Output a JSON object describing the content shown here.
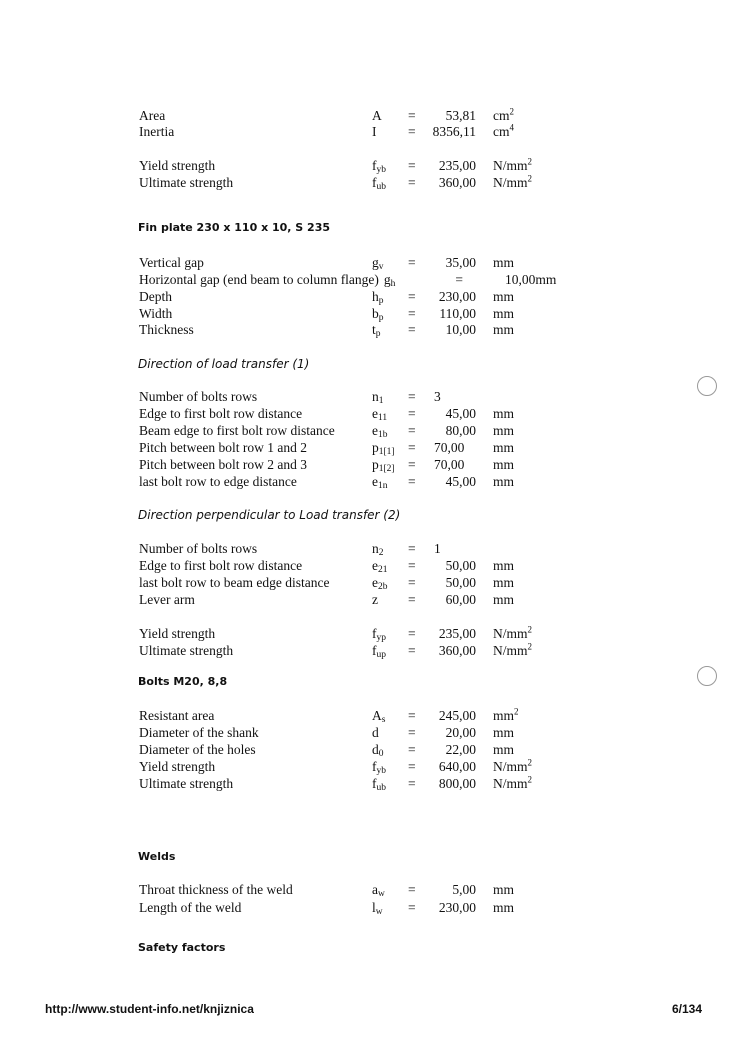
{
  "blocks": [
    {
      "type": "rows",
      "rows": [
        {
          "label": "Area",
          "sym": "A",
          "sub": "",
          "val": "53,81",
          "unit": "cm",
          "unit_sup": "2"
        },
        {
          "label": "Inertia",
          "sym": "I",
          "sub": "",
          "val": "8356,11",
          "unit": "cm",
          "unit_sup": "4"
        }
      ]
    },
    {
      "type": "rows",
      "rows": [
        {
          "label": "Yield strength",
          "sym": "f",
          "sub": "yb",
          "val": "235,00",
          "unit": "N/mm",
          "unit_sup": "2"
        },
        {
          "label": "Ultimate strength",
          "sym": "f",
          "sub": "ub",
          "val": "360,00",
          "unit": "N/mm",
          "unit_sup": "2"
        }
      ]
    },
    {
      "type": "heading",
      "text": "Fin plate 230 x 110 x 10, S 235"
    },
    {
      "type": "rows",
      "rows": [
        {
          "label": "Vertical gap",
          "sym": "g",
          "sub": "v",
          "val": "35,00",
          "unit": "mm"
        },
        {
          "label": "Horizontal gap (end beam to column flange)",
          "sym": "g",
          "sub": "h",
          "val": "10,00mm",
          "unit": "",
          "odd": true
        },
        {
          "label": "Depth",
          "sym": "h",
          "sub": "p",
          "val": "230,00",
          "unit": "mm"
        },
        {
          "label": "Width",
          "sym": "b",
          "sub": "p",
          "val": "110,00",
          "unit": "mm"
        },
        {
          "label": "Thickness",
          "sym": "t",
          "sub": "p",
          "val": "10,00",
          "unit": "mm"
        }
      ]
    },
    {
      "type": "italic",
      "text": "Direction of load transfer (1)"
    },
    {
      "type": "rows",
      "rows": [
        {
          "label": "Number of bolts rows",
          "sym": "n",
          "sub": "1",
          "val": "3",
          "unit": "",
          "valleft": true
        },
        {
          "label": "Edge to first bolt row distance",
          "sym": "e",
          "sub": "11",
          "val": "45,00",
          "unit": "mm"
        },
        {
          "label": "Beam edge to first bolt row distance",
          "sym": "e",
          "sub": "1b",
          "val": "80,00",
          "unit": "mm"
        },
        {
          "label": "Pitch between bolt row 1 and 2",
          "sym": "p",
          "sub": "1[1]",
          "val": "70,00",
          "unit": "mm",
          "valleft": true
        },
        {
          "label": "Pitch between bolt row 2 and 3",
          "sym": "p",
          "sub": "1[2]",
          "val": "70,00",
          "unit": "mm",
          "valleft": true
        },
        {
          "label": "last bolt row to edge distance",
          "sym": "e",
          "sub": "1n",
          "val": "45,00",
          "unit": "mm"
        }
      ]
    },
    {
      "type": "italic",
      "text": "Direction perpendicular to Load transfer (2)"
    },
    {
      "type": "rows",
      "rows": [
        {
          "label": "Number of bolts rows",
          "sym": "n",
          "sub": "2",
          "val": "1",
          "unit": "",
          "valleft": true
        },
        {
          "label": "Edge to first bolt row distance",
          "sym": "e",
          "sub": "21",
          "val": "50,00",
          "unit": "mm"
        },
        {
          "label": "last bolt row to beam edge distance",
          "sym": "e",
          "sub": "2b",
          "val": "50,00",
          "unit": "mm"
        },
        {
          "label": "Lever arm",
          "sym": "z",
          "sub": "",
          "val": "60,00",
          "unit": "mm"
        }
      ]
    },
    {
      "type": "rows",
      "rows": [
        {
          "label": "Yield strength",
          "sym": "f",
          "sub": "yp",
          "val": "235,00",
          "unit": "N/mm",
          "unit_sup": "2"
        },
        {
          "label": "Ultimate strength",
          "sym": "f",
          "sub": "up",
          "val": "360,00",
          "unit": "N/mm",
          "unit_sup": "2"
        }
      ]
    },
    {
      "type": "heading",
      "text": "Bolts M20, 8,8"
    },
    {
      "type": "rows",
      "rows": [
        {
          "label": "Resistant area",
          "sym": "A",
          "sub": "s",
          "val": "245,00",
          "unit": "mm",
          "unit_sup": "2"
        },
        {
          "label": "Diameter of the shank",
          "sym": "d",
          "sub": "",
          "val": "20,00",
          "unit": "mm"
        },
        {
          "label": "Diameter of the holes",
          "sym": "d",
          "sub": "0",
          "val": "22,00",
          "unit": "mm"
        },
        {
          "label": "Yield strength",
          "sym": "f",
          "sub": "yb",
          "val": "640,00",
          "unit": "N/mm",
          "unit_sup": "2"
        },
        {
          "label": "Ultimate strength",
          "sym": "f",
          "sub": "ub",
          "val": "800,00",
          "unit": "N/mm",
          "unit_sup": "2"
        }
      ]
    },
    {
      "type": "heading",
      "text": "Welds"
    },
    {
      "type": "rows",
      "rows": [
        {
          "label": "Throat thickness of the weld",
          "sym": "a",
          "sub": "w",
          "val": "5,00",
          "unit": "mm"
        },
        {
          "label": "Length of the weld",
          "sym": "l",
          "sub": "w",
          "val": "230,00",
          "unit": "mm"
        }
      ]
    },
    {
      "type": "heading",
      "text": "Safety factors"
    }
  ],
  "equals": "=",
  "footer": {
    "url": "http://www.student-info.net/knjiznica",
    "page": "6/134"
  }
}
